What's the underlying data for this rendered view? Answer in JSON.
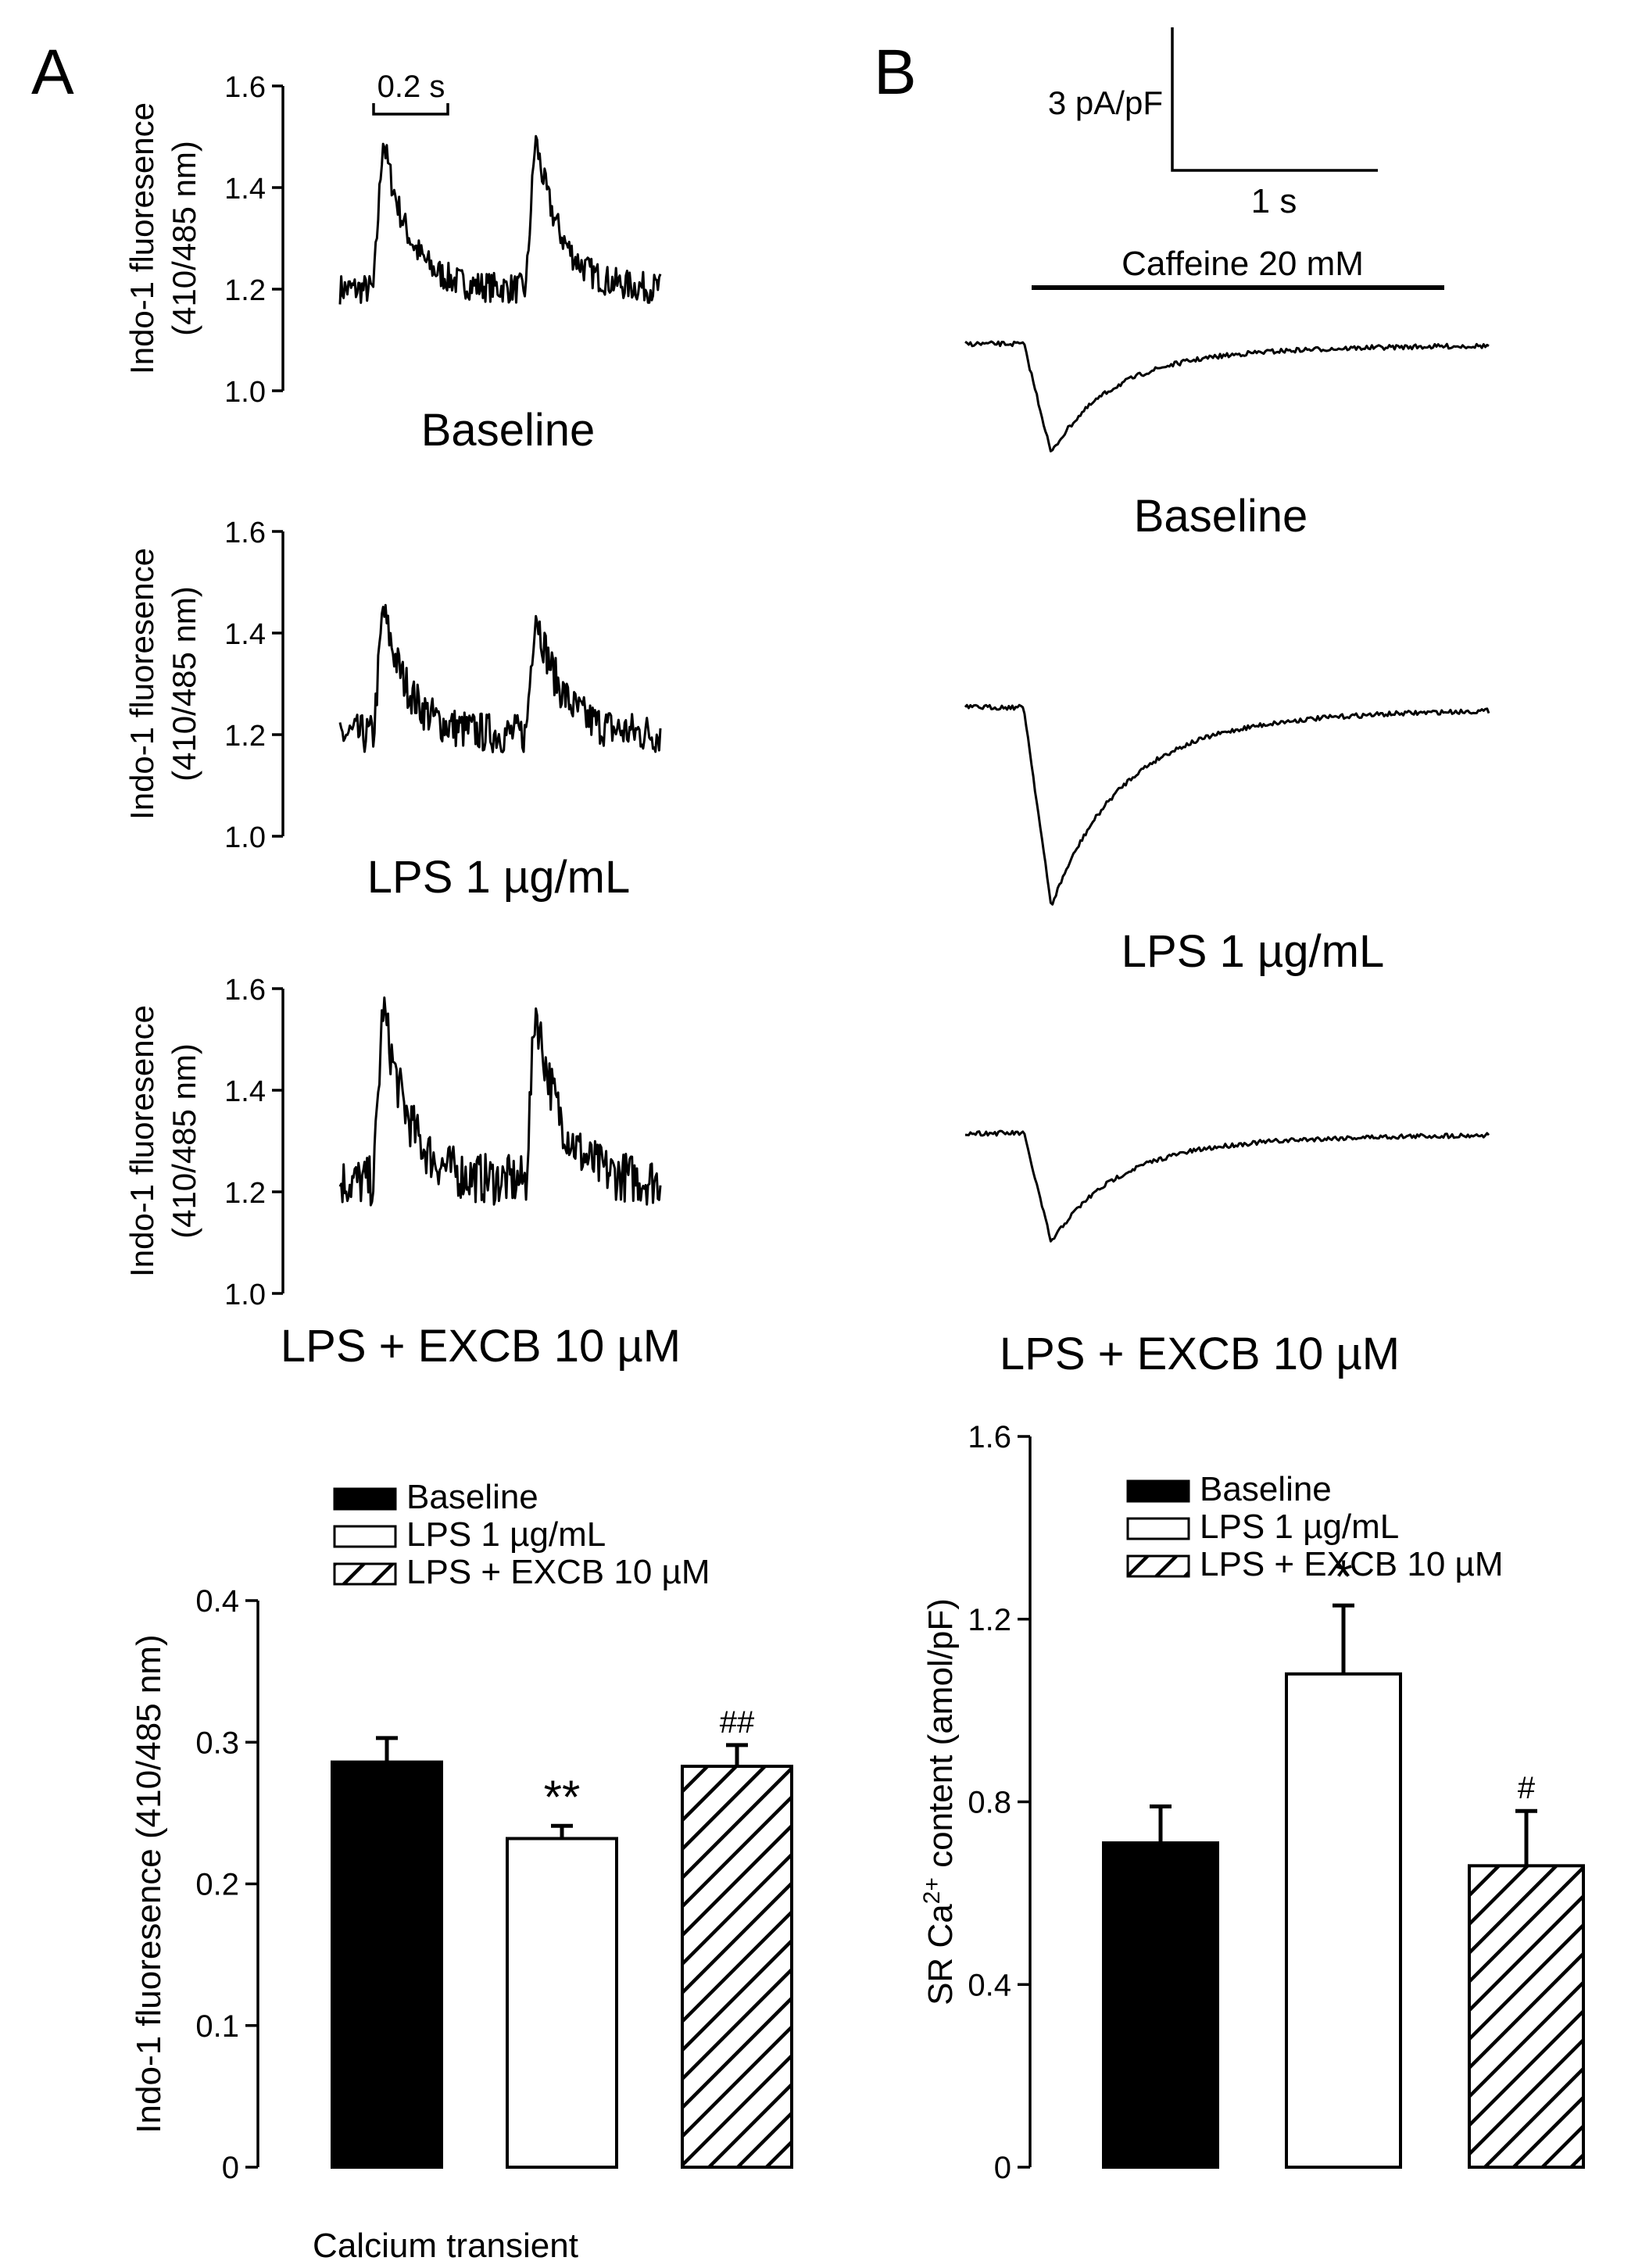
{
  "panels": {
    "a_letter": "A",
    "b_letter": "B"
  },
  "panel_a": {
    "y_label_line1": "Indo-1 fluoresence",
    "y_label_line2": "(410/485 nm)",
    "y_ticks": [
      "1.0",
      "1.2",
      "1.4",
      "1.6"
    ],
    "time_scale_label": "0.2 s",
    "traces": [
      {
        "label": "Baseline",
        "baseline": 1.2,
        "peak": 1.5,
        "noise": 0.03
      },
      {
        "label": "LPS 1 µg/mL",
        "baseline": 1.2,
        "peak": 1.45,
        "noise": 0.04
      },
      {
        "label": "LPS + EXCB 10 µM",
        "baseline": 1.22,
        "peak": 1.57,
        "noise": 0.05
      }
    ]
  },
  "panel_b": {
    "scale_current": "3 pA/pF",
    "scale_time": "1 s",
    "caffeine_label": "Caffeine 20 mM",
    "trace_labels": [
      "Baseline",
      "LPS 1 µg/mL",
      "LPS + EXCB 10 µM"
    ]
  },
  "chart_data": [
    {
      "type": "bar",
      "ylabel": "Indo-1 fluoresence (410/485 nm)",
      "xlabel": "Calcium transient",
      "ylim": [
        0,
        0.4
      ],
      "yticks": [
        "0",
        "0.1",
        "0.2",
        "0.3",
        "0.4"
      ],
      "legend_position": "top",
      "legend": [
        "Baseline",
        "LPS 1 µg/mL",
        "LPS + EXCB 10 µM"
      ],
      "categories": [
        "Baseline",
        "LPS 1 µg/mL",
        "LPS + EXCB 10 µM"
      ],
      "values": [
        0.286,
        0.232,
        0.283
      ],
      "errors": [
        0.017,
        0.009,
        0.015
      ],
      "annotations": [
        "",
        "**",
        "##"
      ],
      "fills": [
        "solid",
        "open",
        "hatched"
      ]
    },
    {
      "type": "bar",
      "ylabel_prefix": "SR Ca",
      "ylabel_sup": "2+",
      "ylabel_suffix": " content (amol/pF)",
      "ylim": [
        0,
        1.6
      ],
      "yticks": [
        "0",
        "0.4",
        "0.8",
        "1.2",
        "1.6"
      ],
      "legend_position": "top",
      "legend": [
        "Baseline",
        "LPS 1 µg/mL",
        "LPS + EXCB 10 µM"
      ],
      "categories": [
        "Baseline",
        "LPS 1 µg/mL",
        "LPS + EXCB 10 µM"
      ],
      "values": [
        0.71,
        1.08,
        0.66
      ],
      "errors": [
        0.08,
        0.15,
        0.12
      ],
      "annotations": [
        "",
        "*",
        "#"
      ],
      "fills": [
        "solid",
        "open",
        "hatched"
      ]
    }
  ]
}
